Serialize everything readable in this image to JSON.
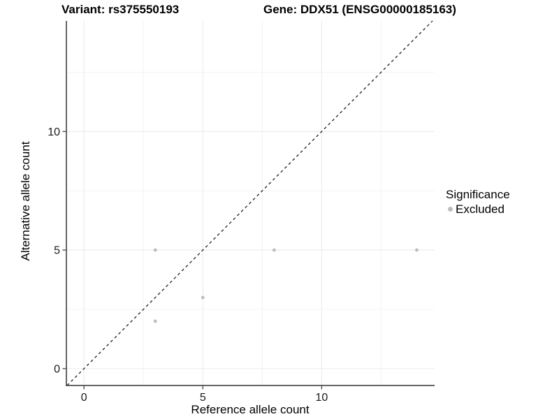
{
  "figure": {
    "title_variant": "Variant: rs375550193",
    "title_gene": "Gene: DDX51 (ENSG00000185163)"
  },
  "axes": {
    "x_title": "Reference allele count",
    "y_title": "Alternative allele count"
  },
  "legend": {
    "title": "Significance",
    "items": [
      {
        "label": "Excluded",
        "color": "#bdbdbd"
      }
    ]
  },
  "chart_data": {
    "type": "scatter",
    "title": "Variant: rs375550193 / Gene: DDX51 (ENSG00000185163)",
    "xlabel": "Reference allele count",
    "ylabel": "Alternative allele count",
    "series": [
      {
        "name": "Excluded",
        "color": "#bdbdbd",
        "points": [
          {
            "x": 3,
            "y": 2
          },
          {
            "x": 3,
            "y": 5
          },
          {
            "x": 5,
            "y": 3
          },
          {
            "x": 8,
            "y": 5
          },
          {
            "x": 14,
            "y": 5
          }
        ]
      }
    ],
    "reference_line": {
      "type": "identity",
      "slope": 1,
      "intercept": 0,
      "style": "dashed",
      "color": "#1f1f1f"
    },
    "x_ticks": [
      0,
      5,
      10
    ],
    "y_ticks": [
      0,
      5,
      10
    ],
    "x_minor_ticks": [
      2.5,
      7.5,
      12.5
    ],
    "y_minor_ticks": [
      2.5,
      7.5,
      12.5
    ],
    "xlim": [
      -0.74,
      14.75
    ],
    "ylim": [
      -0.71,
      14.66
    ],
    "grid": true,
    "legend_position": "right"
  },
  "colors": {
    "grid_major": "#eaeaea",
    "grid_minor": "#f2f2f2",
    "axis_line": "#333333",
    "tick_text": "#1a1a1a",
    "background": "#ffffff"
  }
}
